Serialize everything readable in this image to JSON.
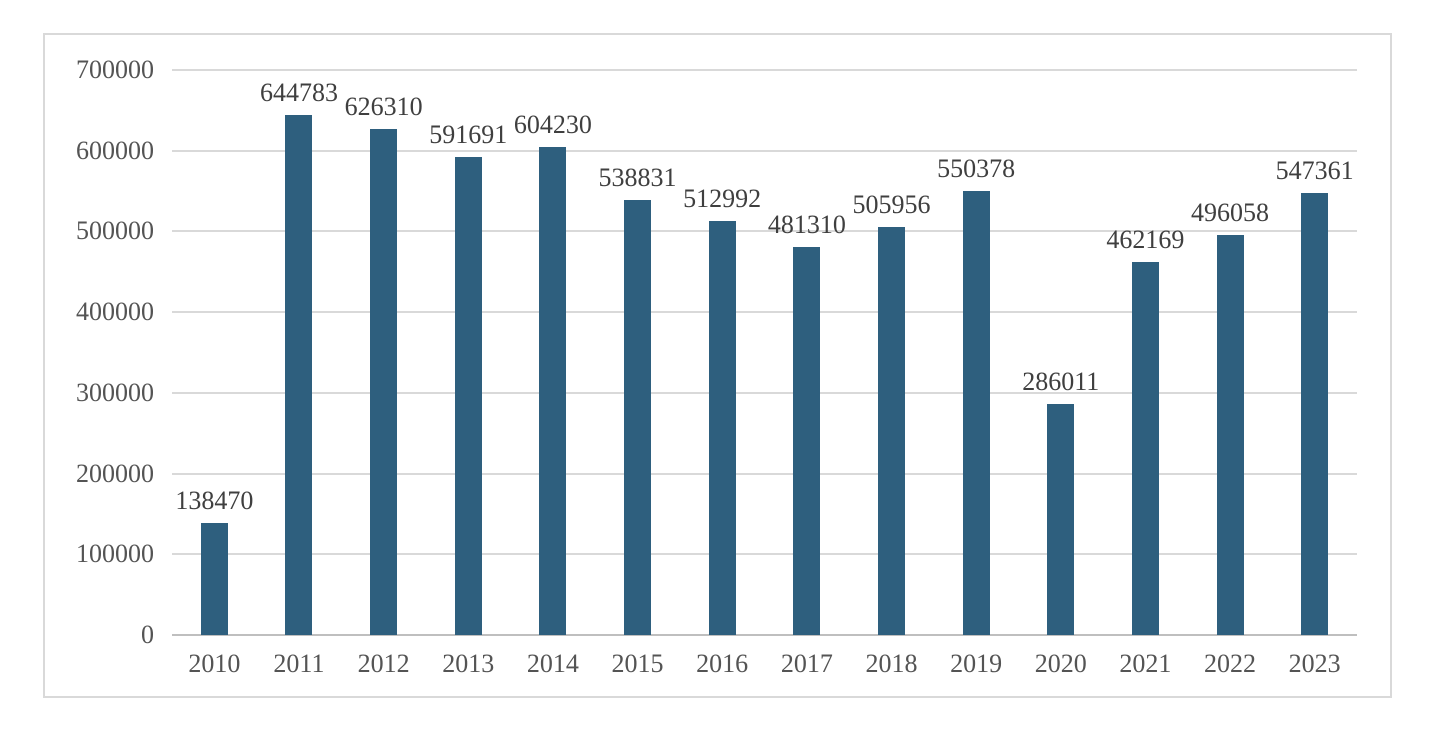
{
  "chart_data": {
    "type": "bar",
    "title": "",
    "xlabel": "",
    "ylabel": "",
    "categories": [
      "2010",
      "2011",
      "2012",
      "2013",
      "2014",
      "2015",
      "2016",
      "2017",
      "2018",
      "2019",
      "2020",
      "2021",
      "2022",
      "2023"
    ],
    "values": [
      138470,
      644783,
      626310,
      591691,
      604230,
      538831,
      512992,
      481310,
      505956,
      550378,
      286011,
      462169,
      496058,
      547361
    ],
    "data_labels_visible": true,
    "ylim": [
      0,
      700000
    ],
    "ytick_interval": 100000,
    "ytick_labels": [
      "0",
      "100000",
      "200000",
      "300000",
      "400000",
      "500000",
      "600000",
      "700000"
    ],
    "grid": "horizontal",
    "legend": "none",
    "colors": {
      "bar": "#2E5F7E",
      "gridline": "#D9D9D9",
      "axis_line": "#BFBFBF",
      "frame_border": "#D9D9D9",
      "tick_text": "#545454",
      "data_label_text": "#3F3F3F",
      "background": "#FFFFFF"
    }
  }
}
